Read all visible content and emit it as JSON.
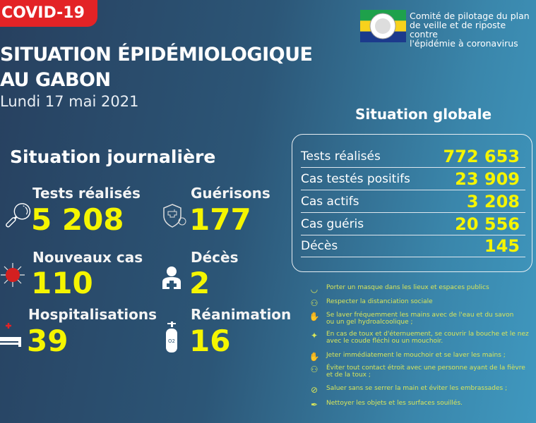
{
  "header": {
    "badge": "COVID-19",
    "title_line1": "SITUATION ÉPIDÉMIOLOGIQUE",
    "title_line2": "AU GABON",
    "date": "Lundi 17 mai 2021"
  },
  "org": {
    "line1": "Comité de pilotage du plan",
    "line2": "de veille et de riposte contre",
    "line3": "l'épidémie à coronavirus"
  },
  "daily": {
    "heading": "Situation journalière",
    "items": [
      {
        "label": "Tests réalisés",
        "value": "5 208",
        "icon": "magnifier-icon"
      },
      {
        "label": "Guérisons",
        "value": "177",
        "icon": "shield-cross-icon"
      },
      {
        "label": "Nouveaux cas",
        "value": "110",
        "icon": "virus-icon"
      },
      {
        "label": "Décès",
        "value": "2",
        "icon": "doctor-icon"
      },
      {
        "label": "Hospitalisations",
        "value": "39",
        "icon": "hospital-bed-icon"
      },
      {
        "label": "Réanimation",
        "value": "16",
        "icon": "oxygen-tank-icon"
      }
    ]
  },
  "global": {
    "heading": "Situation globale",
    "rows": [
      {
        "label": "Tests réalisés",
        "value": "772 653"
      },
      {
        "label": "Cas testés positifs",
        "value": "23 909"
      },
      {
        "label": "Cas actifs",
        "value": "3 208"
      },
      {
        "label": "Cas guéris",
        "value": "20 556"
      },
      {
        "label": "Décès",
        "value": "145"
      }
    ]
  },
  "tips": [
    {
      "line1": "Porter un masque dans les lieux et espaces publics",
      "line2": ""
    },
    {
      "line1": "Respecter la distanciation sociale",
      "line2": ""
    },
    {
      "line1": "Se laver fréquemment les mains avec de l'eau et du savon",
      "line2": " ou un gel hydroalcoolique ;"
    },
    {
      "line1": "En cas de toux et d'éternuement, se couvrir la bouche et le nez",
      "line2": " avec le coude fléchi ou un mouchoir."
    },
    {
      "line1": "Jeter immédiatement le mouchoir et se laver les mains ;",
      "line2": ""
    },
    {
      "line1": "Éviter tout contact étroit avec une personne ayant de la fièvre",
      "line2": " et de la toux ;"
    },
    {
      "line1": "Saluer sans se serrer la main et éviter les embrassades ;",
      "line2": ""
    },
    {
      "line1": "Nettoyer les objets et les surfaces souillés.",
      "line2": ""
    }
  ],
  "colors": {
    "accent": "#f5f500",
    "badge": "#e32326",
    "tips": "#d9e65a"
  }
}
